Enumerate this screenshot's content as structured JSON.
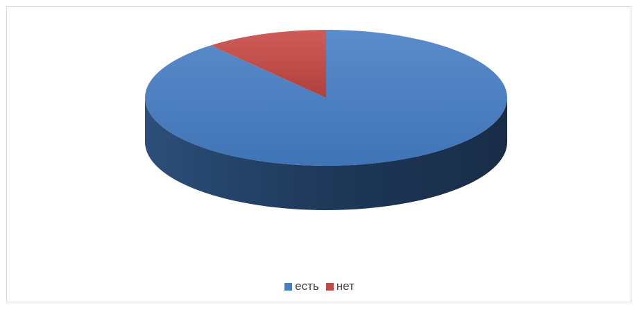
{
  "chart_data": {
    "type": "pie",
    "style": "3d",
    "categories": [
      "есть",
      "нет"
    ],
    "values": [
      89,
      11
    ],
    "colors": [
      "#4a7ebb",
      "#be4b48"
    ],
    "legend": "bottom"
  }
}
